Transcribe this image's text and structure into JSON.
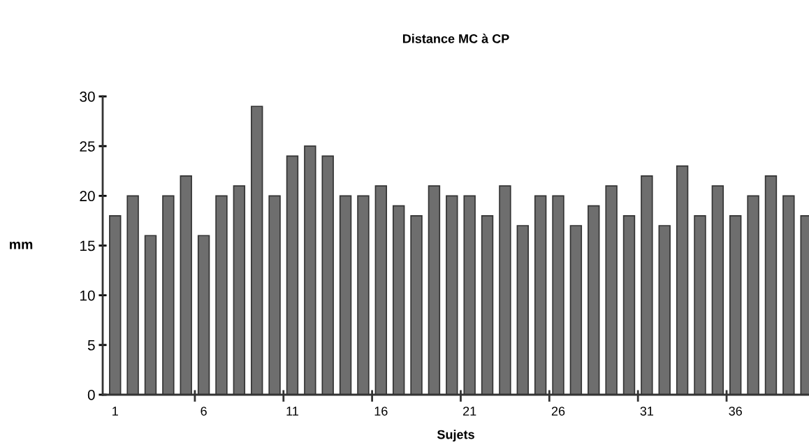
{
  "chart_data": {
    "type": "bar",
    "title": "Distance MC à CP",
    "xlabel": "Sujets",
    "ylabel": "mm",
    "categories": [
      "1",
      null,
      null,
      null,
      null,
      "6",
      null,
      null,
      null,
      null,
      "11",
      null,
      null,
      null,
      null,
      "16",
      null,
      null,
      null,
      null,
      "21",
      null,
      null,
      null,
      null,
      "26",
      null,
      null,
      null,
      null,
      "31",
      null,
      null,
      null,
      null,
      "36",
      null,
      null,
      null,
      null
    ],
    "values": [
      18,
      20,
      16,
      20,
      22,
      16,
      20,
      21,
      29,
      20,
      24,
      25,
      24,
      20,
      20,
      21,
      19,
      18,
      21,
      20,
      20,
      18,
      21,
      17,
      20,
      20,
      17,
      19,
      21,
      18,
      22,
      17,
      23,
      18,
      21,
      18,
      20,
      22,
      20,
      18
    ],
    "color": "#6e6e6e",
    "ylim": [
      0,
      30
    ],
    "yticks": [
      0,
      5,
      10,
      15,
      20,
      25,
      30
    ],
    "grid": false,
    "legend": false
  }
}
